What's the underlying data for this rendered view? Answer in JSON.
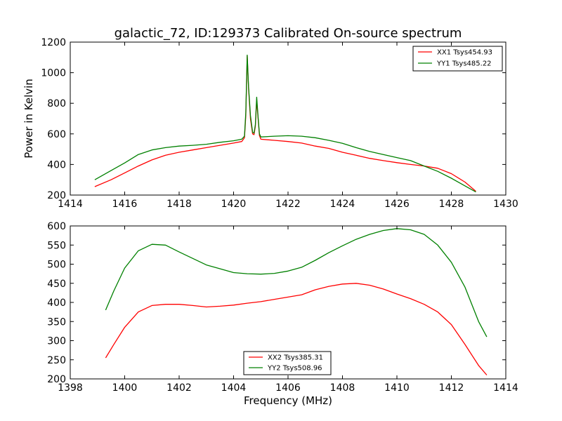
{
  "figure": {
    "title": "galactic_72, ID:129373 Calibrated On-source spectrum"
  },
  "chart_data": [
    {
      "type": "line",
      "title": "galactic_72, ID:129373 Calibrated On-source spectrum",
      "xlabel": "",
      "ylabel": "Power in Kelvin",
      "xlim": [
        1414,
        1430
      ],
      "ylim": [
        200,
        1200
      ],
      "xticks": [
        1414,
        1416,
        1418,
        1420,
        1422,
        1424,
        1426,
        1428,
        1430
      ],
      "yticks": [
        200,
        400,
        600,
        800,
        1000,
        1200
      ],
      "legend_position": "top-right",
      "grid": false,
      "series": [
        {
          "name": "XX1 Tsys454.93",
          "color": "#ff0000",
          "points": [
            [
              1414.9,
              255
            ],
            [
              1415.5,
              300
            ],
            [
              1416,
              345
            ],
            [
              1416.5,
              390
            ],
            [
              1417,
              430
            ],
            [
              1417.5,
              460
            ],
            [
              1418,
              480
            ],
            [
              1418.5,
              495
            ],
            [
              1419,
              510
            ],
            [
              1419.5,
              525
            ],
            [
              1420,
              540
            ],
            [
              1420.3,
              550
            ],
            [
              1420.4,
              575
            ],
            [
              1420.45,
              720
            ],
            [
              1420.5,
              1110
            ],
            [
              1420.55,
              900
            ],
            [
              1420.62,
              700
            ],
            [
              1420.7,
              600
            ],
            [
              1420.75,
              595
            ],
            [
              1420.8,
              650
            ],
            [
              1420.85,
              820
            ],
            [
              1420.9,
              700
            ],
            [
              1420.95,
              590
            ],
            [
              1421,
              565
            ],
            [
              1421.5,
              558
            ],
            [
              1422,
              550
            ],
            [
              1422.5,
              540
            ],
            [
              1423,
              520
            ],
            [
              1423.5,
              505
            ],
            [
              1424,
              480
            ],
            [
              1424.5,
              460
            ],
            [
              1425,
              440
            ],
            [
              1425.5,
              425
            ],
            [
              1426,
              412
            ],
            [
              1426.5,
              400
            ],
            [
              1427,
              390
            ],
            [
              1427.5,
              375
            ],
            [
              1428,
              340
            ],
            [
              1428.5,
              285
            ],
            [
              1428.9,
              225
            ]
          ]
        },
        {
          "name": "YY1 Tsys485.22",
          "color": "#008000",
          "points": [
            [
              1414.9,
              300
            ],
            [
              1415.5,
              360
            ],
            [
              1416,
              410
            ],
            [
              1416.5,
              465
            ],
            [
              1417,
              495
            ],
            [
              1417.5,
              510
            ],
            [
              1418,
              520
            ],
            [
              1418.5,
              525
            ],
            [
              1419,
              532
            ],
            [
              1419.5,
              545
            ],
            [
              1420,
              555
            ],
            [
              1420.3,
              565
            ],
            [
              1420.4,
              585
            ],
            [
              1420.45,
              740
            ],
            [
              1420.5,
              1115
            ],
            [
              1420.55,
              910
            ],
            [
              1420.62,
              720
            ],
            [
              1420.7,
              610
            ],
            [
              1420.75,
              605
            ],
            [
              1420.8,
              660
            ],
            [
              1420.85,
              840
            ],
            [
              1420.9,
              710
            ],
            [
              1420.95,
              600
            ],
            [
              1421,
              580
            ],
            [
              1421.5,
              585
            ],
            [
              1422,
              588
            ],
            [
              1422.5,
              585
            ],
            [
              1423,
              575
            ],
            [
              1423.5,
              558
            ],
            [
              1424,
              538
            ],
            [
              1424.5,
              510
            ],
            [
              1425,
              485
            ],
            [
              1425.5,
              465
            ],
            [
              1426,
              445
            ],
            [
              1426.5,
              425
            ],
            [
              1427,
              390
            ],
            [
              1427.5,
              355
            ],
            [
              1428,
              310
            ],
            [
              1428.5,
              260
            ],
            [
              1428.9,
              220
            ]
          ]
        }
      ]
    },
    {
      "type": "line",
      "title": "",
      "xlabel": "Frequency (MHz)",
      "ylabel": "",
      "xlim": [
        1398,
        1414
      ],
      "ylim": [
        200,
        600
      ],
      "xticks": [
        1398,
        1400,
        1402,
        1404,
        1406,
        1408,
        1410,
        1412,
        1414
      ],
      "yticks": [
        200,
        250,
        300,
        350,
        400,
        450,
        500,
        550,
        600
      ],
      "legend_position": "bottom-center",
      "grid": false,
      "series": [
        {
          "name": "XX2 Tsys385.31",
          "color": "#ff0000",
          "points": [
            [
              1399.3,
              255
            ],
            [
              1399.6,
              290
            ],
            [
              1400,
              335
            ],
            [
              1400.5,
              375
            ],
            [
              1401,
              392
            ],
            [
              1401.5,
              395
            ],
            [
              1402,
              395
            ],
            [
              1402.5,
              392
            ],
            [
              1403,
              388
            ],
            [
              1403.5,
              390
            ],
            [
              1404,
              393
            ],
            [
              1404.5,
              398
            ],
            [
              1405,
              402
            ],
            [
              1405.5,
              408
            ],
            [
              1406,
              414
            ],
            [
              1406.5,
              420
            ],
            [
              1407,
              433
            ],
            [
              1407.5,
              442
            ],
            [
              1408,
              448
            ],
            [
              1408.5,
              450
            ],
            [
              1409,
              445
            ],
            [
              1409.5,
              435
            ],
            [
              1410,
              422
            ],
            [
              1410.5,
              410
            ],
            [
              1411,
              395
            ],
            [
              1411.5,
              375
            ],
            [
              1412,
              342
            ],
            [
              1412.5,
              290
            ],
            [
              1413,
              235
            ],
            [
              1413.3,
              210
            ]
          ]
        },
        {
          "name": "YY2 Tsys508.96",
          "color": "#008000",
          "points": [
            [
              1399.3,
              380
            ],
            [
              1399.6,
              430
            ],
            [
              1400,
              490
            ],
            [
              1400.5,
              535
            ],
            [
              1401,
              552
            ],
            [
              1401.5,
              550
            ],
            [
              1402,
              532
            ],
            [
              1402.5,
              515
            ],
            [
              1403,
              498
            ],
            [
              1403.5,
              488
            ],
            [
              1404,
              478
            ],
            [
              1404.5,
              475
            ],
            [
              1405,
              474
            ],
            [
              1405.5,
              476
            ],
            [
              1406,
              482
            ],
            [
              1406.5,
              492
            ],
            [
              1407,
              510
            ],
            [
              1407.5,
              530
            ],
            [
              1408,
              548
            ],
            [
              1408.5,
              565
            ],
            [
              1409,
              578
            ],
            [
              1409.5,
              588
            ],
            [
              1410,
              593
            ],
            [
              1410.5,
              590
            ],
            [
              1411,
              578
            ],
            [
              1411.5,
              550
            ],
            [
              1412,
              505
            ],
            [
              1412.5,
              440
            ],
            [
              1413,
              350
            ],
            [
              1413.3,
              310
            ]
          ]
        }
      ]
    }
  ]
}
